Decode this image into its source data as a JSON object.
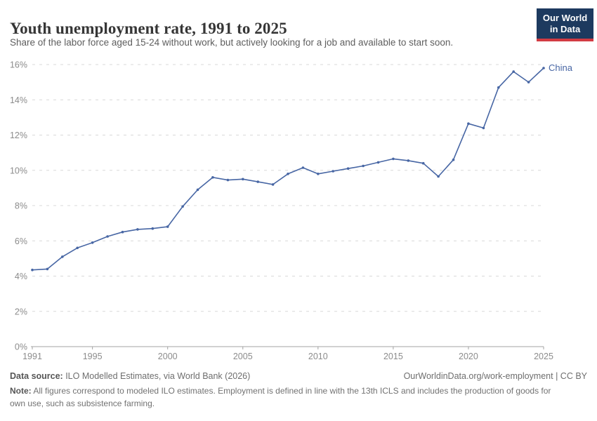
{
  "header": {
    "title": "Youth unemployment rate, 1991 to 2025",
    "subtitle": "Share of the labor force aged 15-24 without work, but actively looking for a job and available to start soon.",
    "logo": {
      "line1": "Our World",
      "line2": "in Data"
    }
  },
  "chart_data": {
    "type": "line",
    "title": "Youth unemployment rate, 1991 to 2025",
    "x": [
      1991,
      1992,
      1993,
      1994,
      1995,
      1996,
      1997,
      1998,
      1999,
      2000,
      2001,
      2002,
      2003,
      2004,
      2005,
      2006,
      2007,
      2008,
      2009,
      2010,
      2011,
      2012,
      2013,
      2014,
      2015,
      2016,
      2017,
      2018,
      2019,
      2020,
      2021,
      2022,
      2023,
      2024,
      2025
    ],
    "series": [
      {
        "name": "China",
        "values": [
          4.35,
          4.4,
          5.1,
          5.6,
          5.9,
          6.25,
          6.5,
          6.65,
          6.7,
          6.8,
          7.95,
          8.9,
          9.6,
          9.45,
          9.5,
          9.35,
          9.2,
          9.8,
          10.15,
          9.8,
          9.95,
          10.1,
          10.25,
          10.45,
          10.65,
          10.55,
          10.4,
          9.65,
          10.6,
          12.65,
          12.4,
          14.7,
          15.6,
          15.0,
          15.8
        ]
      }
    ],
    "xlabel": "",
    "ylabel": "",
    "ylim": [
      0,
      16
    ],
    "xticks": [
      1991,
      1995,
      2000,
      2005,
      2010,
      2015,
      2020,
      2025
    ],
    "ytick_values": [
      0,
      2,
      4,
      6,
      8,
      10,
      12,
      14,
      16
    ],
    "ytick_labels": [
      "0%",
      "2%",
      "4%",
      "6%",
      "8%",
      "10%",
      "12%",
      "14%",
      "16%"
    ],
    "grid": "horizontal-dashed",
    "legend_position": "end-of-line-label"
  },
  "colors": {
    "line": "#4766a4",
    "grid": "#d9d9d9",
    "axis": "#a3a3a3",
    "tick_text": "#8c8c8c",
    "title": "#363636",
    "subtitle": "#5e5e5e",
    "logo_bg": "#1d3a5f",
    "logo_red": "#d23b42"
  },
  "footer": {
    "source_label": "Data source:",
    "source_text": " ILO Modelled Estimates, via World Bank (2026)",
    "link": "OurWorldinData.org/work-employment | CC BY",
    "note_label": "Note:",
    "note_text": " All figures correspond to modeled ILO estimates. Employment is defined in line with the 13th ICLS and includes the production of goods for own use, such as subsistence farming."
  }
}
